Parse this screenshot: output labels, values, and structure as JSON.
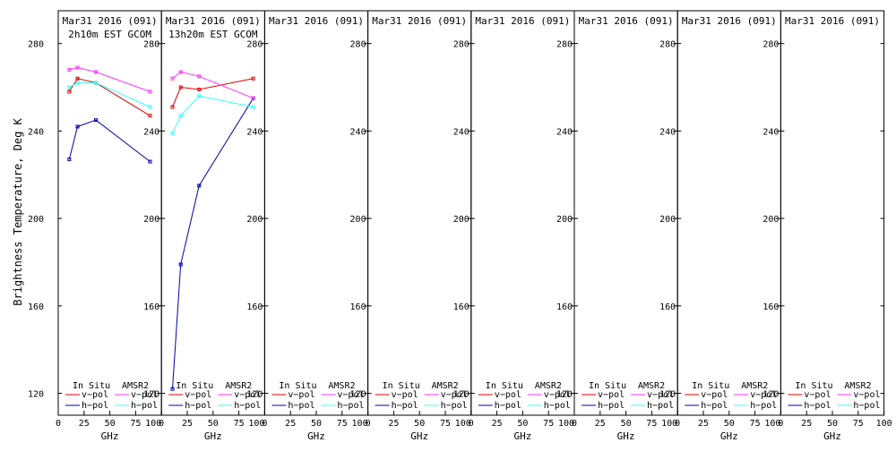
{
  "figure": {
    "ylabel": "Brightness Temperature, Deg K"
  },
  "legend": {
    "in_situ": "In Situ",
    "amsr2": "AMSR2",
    "vpol": "v−pol",
    "hpol": "h−pol"
  },
  "colors": {
    "insitu_v": "#e00000",
    "insitu_h": "#0000aa",
    "amsr2_v": "#ff33ff",
    "amsr2_h": "#33ffff"
  },
  "chart_data": [
    {
      "type": "line",
      "title": "Mar31 2016 (091)",
      "subtitle": "2h10m EST GCOM",
      "xlabel": "GHz",
      "ylabel": "Brightness Temperature, Deg K",
      "xlim": [
        0,
        100
      ],
      "ylim": [
        110,
        295
      ],
      "xticks": [
        0,
        25,
        50,
        75,
        100
      ],
      "yticks": [
        120,
        160,
        200,
        240,
        280
      ],
      "series": [
        {
          "name": "In Situ v−pol",
          "color_key": "insitu_v",
          "x": [
            10.7,
            18.7,
            36.5,
            89
          ],
          "y": [
            258,
            264,
            262,
            247
          ]
        },
        {
          "name": "In Situ h−pol",
          "color_key": "insitu_h",
          "x": [
            10.7,
            18.7,
            36.5,
            89
          ],
          "y": [
            227,
            242,
            245,
            226
          ]
        },
        {
          "name": "AMSR2 v−pol",
          "color_key": "amsr2_v",
          "x": [
            10.7,
            18.7,
            36.5,
            89
          ],
          "y": [
            268,
            269,
            267,
            258
          ]
        },
        {
          "name": "AMSR2 h−pol",
          "color_key": "amsr2_h",
          "x": [
            10.7,
            18.7,
            36.5,
            89
          ],
          "y": [
            260,
            262,
            262,
            251
          ]
        }
      ]
    },
    {
      "type": "line",
      "title": "Mar31 2016 (091)",
      "subtitle": "13h20m EST GCOM",
      "xlabel": "GHz",
      "xlim": [
        0,
        100
      ],
      "ylim": [
        110,
        295
      ],
      "xticks": [
        0,
        25,
        50,
        75,
        100
      ],
      "yticks": [
        120,
        160,
        200,
        240,
        280
      ],
      "series": [
        {
          "name": "In Situ v−pol",
          "color_key": "insitu_v",
          "x": [
            10.7,
            18.7,
            36.5,
            89
          ],
          "y": [
            251,
            260,
            259,
            264
          ]
        },
        {
          "name": "In Situ h−pol",
          "color_key": "insitu_h",
          "x": [
            10.7,
            18.7,
            36.5,
            89
          ],
          "y": [
            122,
            179,
            215,
            255
          ]
        },
        {
          "name": "AMSR2 v−pol",
          "color_key": "amsr2_v",
          "x": [
            10.7,
            18.7,
            36.5,
            89
          ],
          "y": [
            264,
            267,
            265,
            255
          ]
        },
        {
          "name": "AMSR2 h−pol",
          "color_key": "amsr2_h",
          "x": [
            10.7,
            18.7,
            36.5,
            89
          ],
          "y": [
            239,
            247,
            256,
            251
          ]
        }
      ]
    },
    {
      "type": "line",
      "title": "Mar31 2016 (091)",
      "subtitle": "",
      "xlabel": "GHz",
      "xlim": [
        0,
        100
      ],
      "ylim": [
        110,
        295
      ],
      "xticks": [
        0,
        25,
        50,
        75,
        100
      ],
      "yticks": [
        120,
        160,
        200,
        240,
        280
      ],
      "series": []
    },
    {
      "type": "line",
      "title": "Mar31 2016 (091)",
      "subtitle": "",
      "xlabel": "GHz",
      "xlim": [
        0,
        100
      ],
      "ylim": [
        110,
        295
      ],
      "xticks": [
        0,
        25,
        50,
        75,
        100
      ],
      "yticks": [
        120,
        160,
        200,
        240,
        280
      ],
      "series": []
    },
    {
      "type": "line",
      "title": "Mar31 2016 (091)",
      "subtitle": "",
      "xlabel": "GHz",
      "xlim": [
        0,
        100
      ],
      "ylim": [
        110,
        295
      ],
      "xticks": [
        0,
        25,
        50,
        75,
        100
      ],
      "yticks": [
        120,
        160,
        200,
        240,
        280
      ],
      "series": []
    },
    {
      "type": "line",
      "title": "Mar31 2016 (091)",
      "subtitle": "",
      "xlabel": "GHz",
      "xlim": [
        0,
        100
      ],
      "ylim": [
        110,
        295
      ],
      "xticks": [
        0,
        25,
        50,
        75,
        100
      ],
      "yticks": [
        120,
        160,
        200,
        240,
        280
      ],
      "series": []
    },
    {
      "type": "line",
      "title": "Mar31 2016 (091)",
      "subtitle": "",
      "xlabel": "GHz",
      "xlim": [
        0,
        100
      ],
      "ylim": [
        110,
        295
      ],
      "xticks": [
        0,
        25,
        50,
        75,
        100
      ],
      "yticks": [
        120,
        160,
        200,
        240,
        280
      ],
      "series": []
    },
    {
      "type": "line",
      "title": "Mar31 2016 (091)",
      "subtitle": "",
      "xlabel": "GHz",
      "xlim": [
        0,
        100
      ],
      "ylim": [
        110,
        295
      ],
      "xticks": [
        0,
        25,
        50,
        75,
        100
      ],
      "yticks": [
        120,
        160,
        200,
        240,
        280
      ],
      "series": []
    }
  ]
}
